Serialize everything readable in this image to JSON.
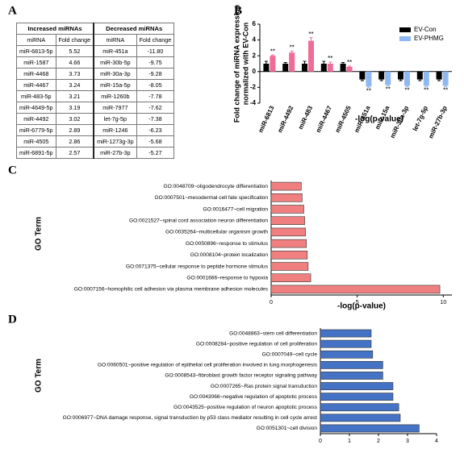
{
  "panel_labels": [
    "A",
    "B",
    "C",
    "D"
  ],
  "table": {
    "groups": [
      "Increased miRNAs",
      "Decreased miRNAs"
    ],
    "columns": [
      "miRNA",
      "Fold change",
      "miRNA",
      "Fold change"
    ],
    "rows": [
      [
        "miR-6813-5p",
        "5.52",
        "miR-451a",
        "-11.80"
      ],
      [
        "miR-1587",
        "4.66",
        "miR-30b-5p",
        "-9.75"
      ],
      [
        "miR-4468",
        "3.73",
        "miR-30a-3p",
        "-9.28"
      ],
      [
        "miR-4467",
        "3.24",
        "miR-15a-5p",
        "-8.05"
      ],
      [
        "miR-483-5p",
        "3.21",
        "miR-1260b",
        "-7.78"
      ],
      [
        "miR-4649-5p",
        "3.19",
        "miR-7977",
        "-7.62"
      ],
      [
        "miR-4492",
        "3.02",
        "let-7g-5p",
        "-7.38"
      ],
      [
        "miR-6779-5p",
        "2.89",
        "miR-1246",
        "-6.23"
      ],
      [
        "miR-4505",
        "2.86",
        "miR-1273g-3p",
        "-5.68"
      ],
      [
        "miR-6891-5p",
        "2.57",
        "miR-27b-3p",
        "-5.27"
      ]
    ]
  },
  "chart_data": [
    {
      "type": "bar",
      "y_label": [
        "Fold change of miRNA expression",
        "normalized with EV-Con"
      ],
      "x_label": "-log(p-value)",
      "categories": [
        "miR-6813",
        "miR-4492",
        "miR-483",
        "miR-4467",
        "miR-4505",
        "miR-451a",
        "miR-15a",
        "miR-30a-3p",
        "let-7g-5p",
        "miR-27b-3p"
      ],
      "series": [
        {
          "name": "EV-Con",
          "color": "#000000",
          "values": [
            1,
            1,
            1,
            1,
            1,
            -1,
            -1,
            -1,
            -1,
            -1
          ],
          "errors": [
            0.3,
            0.15,
            0.3,
            0.3,
            0.15,
            0.15,
            0.15,
            0.15,
            0.15,
            0.15
          ]
        },
        {
          "name": "EV-PHMG",
          "color": "#8fb8f0",
          "colors": [
            "#f06a9a",
            "#f06a9a",
            "#f06a9a",
            "#f06a9a",
            "#f06a9a",
            "#8fb8f0",
            "#8fb8f0",
            "#8fb8f0",
            "#8fb8f0",
            "#8fb8f0"
          ],
          "values": [
            2.0,
            2.4,
            3.9,
            1.0,
            0.6,
            -1.9,
            -1.7,
            -1.8,
            -1.8,
            -1.8
          ],
          "errors": [
            0.1,
            0.2,
            0.4,
            0.2,
            0.1,
            0.1,
            0.1,
            0.1,
            0.1,
            0.1
          ],
          "significance": [
            "**",
            "**",
            "**",
            "**",
            "**",
            "**",
            "**",
            "**",
            "**",
            "**"
          ]
        }
      ],
      "ylim": [
        -4,
        6
      ],
      "yticks": [
        -4,
        -2,
        0,
        2,
        4,
        6
      ],
      "legend": "top-right"
    },
    {
      "type": "barh",
      "x_label": "-log(p-value)",
      "y_label": "GO Term",
      "color": "#f08080",
      "categories": [
        "GO:0048709~oligodendrocyte differentiation",
        "GO:0007501~mesodermal cell fate specification",
        "GO:0016477~cell migration",
        "GO:0021527~spinal cord association neuron differentiation",
        "GO:0035264~multicellular organism growth",
        "GO:0050896~response to stimulus",
        "GO:0008104~protein localization",
        "GO:0071375~cellular response to peptide hormone stimulus",
        "GO:0001666~response to hypoxia",
        "GO:0007156~homophilic cell adhesion via plasma membrane adhesion molecules"
      ],
      "values": [
        1.75,
        1.8,
        1.9,
        1.95,
        2.0,
        2.05,
        2.1,
        2.15,
        2.3,
        9.8
      ],
      "xlim": [
        0,
        10.5
      ],
      "xticks": [
        0,
        5,
        10
      ]
    },
    {
      "type": "barh",
      "y_label": "GO Term",
      "color": "#4472c4",
      "categories": [
        "GO:0048863~stem cell differentiation",
        "GO:0008284~positive regulation of cell proliferation",
        "GO:0007049~cell cycle",
        "GO:0060501~positive regulation of epithelial cell proliferation involved in lung morphogenesis",
        "GO:0008543~fibroblast growth factor receptor signaling pathway",
        "GO:0007265~Ras protein signal transduction",
        "GO:0043066~negative regulation of apoptotic process",
        "GO:0043525~positive regulation of neuron apoptotic process",
        "GO:0006977~DNA damage response, signal transduction by p53 class mediator resulting in cell cycle arrest",
        "GO:0051301~cell division"
      ],
      "values": [
        1.75,
        1.75,
        1.8,
        2.15,
        2.15,
        2.5,
        2.5,
        2.7,
        2.75,
        3.4
      ],
      "xlim": [
        0,
        4
      ],
      "xticks": [
        0,
        1,
        2,
        3,
        4
      ]
    }
  ]
}
